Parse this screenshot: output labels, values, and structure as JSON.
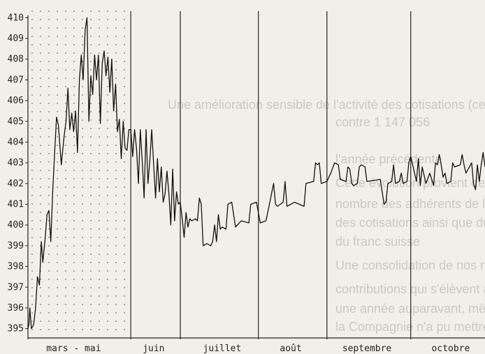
{
  "background_text": [
    "Une amélioration sensible de l'activité des cotisations (celles-ci atteignent le",
    "contre 1 147 056",
    "l'année précédente",
    "Cette évolution provient de la stabilisation",
    "nombre des adhérents de la hausse",
    "des cotisations ainsi que du",
    "du franc suisse",
    "Une consolidation de nos recettes nettes",
    "contributions qui s'élèvent à",
    "une année auparavant, même si",
    "la Compagnie n'a pu mettre sur pied"
  ],
  "chart_data": {
    "type": "line",
    "title": "",
    "xlabel": "",
    "ylabel": "",
    "ylim": [
      395,
      410
    ],
    "ylim_draw": [
      394.55,
      410.45
    ],
    "yticks": [
      395,
      396,
      397,
      398,
      399,
      400,
      401,
      402,
      403,
      404,
      405,
      406,
      407,
      408,
      409,
      410
    ],
    "ytick_labels": [
      "395",
      "396",
      "397",
      "398",
      "399",
      "400",
      "401",
      "402",
      "403",
      "404",
      "405",
      "406",
      "407",
      "408",
      "409",
      "410"
    ],
    "xlim": [
      0,
      240
    ],
    "month_labels": [
      {
        "label": "mars - mai",
        "x": 24
      },
      {
        "label": "juin",
        "x": 66
      },
      {
        "label": "juillet",
        "x": 102
      },
      {
        "label": "août",
        "x": 138
      },
      {
        "label": "septembre",
        "x": 178
      },
      {
        "label": "octobre",
        "x": 222
      }
    ],
    "month_dividers": [
      54,
      80,
      121,
      157,
      201
    ],
    "grid": "dotted",
    "dotted_region": [
      0,
      54
    ],
    "colors": {
      "line": "#111111",
      "axis": "#222222",
      "dots": "#444444"
    },
    "series": [
      {
        "values": [
          [
            0,
            395
          ],
          [
            0.5,
            395.2
          ],
          [
            1,
            396
          ],
          [
            1.8,
            395
          ],
          [
            3,
            395.2
          ],
          [
            4,
            396
          ],
          [
            5,
            397.5
          ],
          [
            6,
            397.1
          ],
          [
            7,
            399.2
          ],
          [
            7.8,
            398.2
          ],
          [
            9,
            399.3
          ],
          [
            10,
            400.5
          ],
          [
            11,
            400.7
          ],
          [
            12,
            399.2
          ],
          [
            13,
            401.6
          ],
          [
            14,
            403.5
          ],
          [
            15,
            405.2
          ],
          [
            16,
            404.8
          ],
          [
            17.5,
            402.9
          ],
          [
            19,
            404.3
          ],
          [
            20,
            405
          ],
          [
            21,
            406.6
          ],
          [
            22,
            404.6
          ],
          [
            23,
            405.4
          ],
          [
            24,
            404.5
          ],
          [
            25,
            405.5
          ],
          [
            26,
            403.5
          ],
          [
            27,
            407
          ],
          [
            28,
            408.2
          ],
          [
            29,
            407
          ],
          [
            30,
            409.4
          ],
          [
            31,
            410
          ],
          [
            32,
            405
          ],
          [
            33,
            407.2
          ],
          [
            34,
            406.3
          ],
          [
            35,
            408.2
          ],
          [
            36,
            407
          ],
          [
            37,
            408.2
          ],
          [
            38,
            404.9
          ],
          [
            39,
            407.8
          ],
          [
            40,
            408.4
          ],
          [
            41,
            407.2
          ],
          [
            42,
            408.1
          ],
          [
            43,
            406.4
          ],
          [
            44,
            408
          ],
          [
            45,
            405.5
          ],
          [
            46,
            406.8
          ],
          [
            47,
            404.5
          ],
          [
            48,
            405.1
          ],
          [
            49,
            403.2
          ],
          [
            50,
            405
          ],
          [
            51,
            403.7
          ],
          [
            52,
            403.6
          ],
          [
            53,
            404.6
          ],
          [
            54,
            404.6
          ],
          [
            55,
            403.3
          ],
          [
            56,
            404.6
          ],
          [
            57,
            403.7
          ],
          [
            58,
            402
          ],
          [
            59,
            404.6
          ],
          [
            60,
            403.1
          ],
          [
            61,
            401.3
          ],
          [
            62,
            404.6
          ],
          [
            63,
            402
          ],
          [
            64,
            403.1
          ],
          [
            65,
            404.6
          ],
          [
            66,
            402.9
          ],
          [
            67,
            401.3
          ],
          [
            68,
            403.2
          ],
          [
            69,
            401.6
          ],
          [
            70,
            402.8
          ],
          [
            71,
            401.1
          ],
          [
            72,
            401.5
          ],
          [
            73,
            402.6
          ],
          [
            74,
            401.5
          ],
          [
            75,
            400
          ],
          [
            76,
            402.7
          ],
          [
            77,
            400.2
          ],
          [
            78,
            401.6
          ],
          [
            79,
            401
          ],
          [
            80,
            401.1
          ],
          [
            81,
            400.3
          ],
          [
            82,
            399.4
          ],
          [
            83,
            400.6
          ],
          [
            84,
            399.9
          ],
          [
            85,
            400.3
          ],
          [
            86,
            400.2
          ],
          [
            88,
            400.3
          ],
          [
            89,
            400.2
          ],
          [
            90,
            401.3
          ],
          [
            91,
            401
          ],
          [
            92,
            399
          ],
          [
            94,
            399.1
          ],
          [
            96,
            399
          ],
          [
            97,
            399.2
          ],
          [
            98,
            400
          ],
          [
            99,
            399.2
          ],
          [
            100,
            400.5
          ],
          [
            101,
            399.8
          ],
          [
            102,
            399.9
          ],
          [
            104,
            399.8
          ],
          [
            105,
            401
          ],
          [
            107,
            401.1
          ],
          [
            109,
            399.9
          ],
          [
            112,
            400.2
          ],
          [
            116,
            400.1
          ],
          [
            117,
            401
          ],
          [
            120,
            401.1
          ],
          [
            122,
            400.1
          ],
          [
            125,
            400.2
          ],
          [
            127,
            401.1
          ],
          [
            129,
            402
          ],
          [
            130,
            401
          ],
          [
            131,
            400.9
          ],
          [
            134,
            401.1
          ],
          [
            135,
            402.1
          ],
          [
            136,
            400.9
          ],
          [
            140,
            401.1
          ],
          [
            145,
            400.9
          ],
          [
            146,
            402
          ],
          [
            150,
            402.1
          ],
          [
            151,
            403
          ],
          [
            152,
            402.9
          ],
          [
            153,
            403
          ],
          [
            154,
            402
          ],
          [
            157,
            402.1
          ],
          [
            159,
            402.5
          ],
          [
            161,
            403
          ],
          [
            163,
            402.9
          ],
          [
            164,
            402.2
          ],
          [
            167,
            402.1
          ],
          [
            168,
            402.8
          ],
          [
            169,
            402.7
          ],
          [
            170,
            402
          ],
          [
            171,
            401.9
          ],
          [
            173,
            402
          ],
          [
            174,
            402.8
          ],
          [
            175,
            402.9
          ],
          [
            177,
            402.8
          ],
          [
            178,
            402.1
          ],
          [
            185,
            402.2
          ],
          [
            187,
            401
          ],
          [
            188,
            401.1
          ],
          [
            189,
            402
          ],
          [
            191,
            402.1
          ],
          [
            192,
            402.9
          ],
          [
            193,
            402
          ],
          [
            195,
            402.1
          ],
          [
            196,
            402.5
          ],
          [
            197,
            402
          ],
          [
            199,
            402.1
          ],
          [
            200,
            403
          ],
          [
            201,
            403.3
          ],
          [
            202,
            402.9
          ],
          [
            204,
            402.1
          ],
          [
            205,
            403.2
          ],
          [
            206,
            401.9
          ],
          [
            207,
            402.8
          ],
          [
            209,
            402
          ],
          [
            211,
            402.5
          ],
          [
            213,
            401.9
          ],
          [
            214,
            403
          ],
          [
            215,
            402.9
          ],
          [
            216,
            403.4
          ],
          [
            217,
            402.9
          ],
          [
            218,
            402.3
          ],
          [
            219,
            402.5
          ],
          [
            220,
            402
          ],
          [
            222,
            402.1
          ],
          [
            223,
            403
          ],
          [
            224,
            402.8
          ],
          [
            227,
            402.9
          ],
          [
            228,
            403.4
          ],
          [
            229,
            402.9
          ],
          [
            230,
            402.5
          ],
          [
            233,
            403
          ],
          [
            234,
            402
          ],
          [
            235,
            401.7
          ],
          [
            236,
            402.9
          ],
          [
            237,
            402.1
          ],
          [
            238,
            402.9
          ],
          [
            239,
            403.5
          ],
          [
            240,
            402.8
          ]
        ]
      }
    ]
  }
}
